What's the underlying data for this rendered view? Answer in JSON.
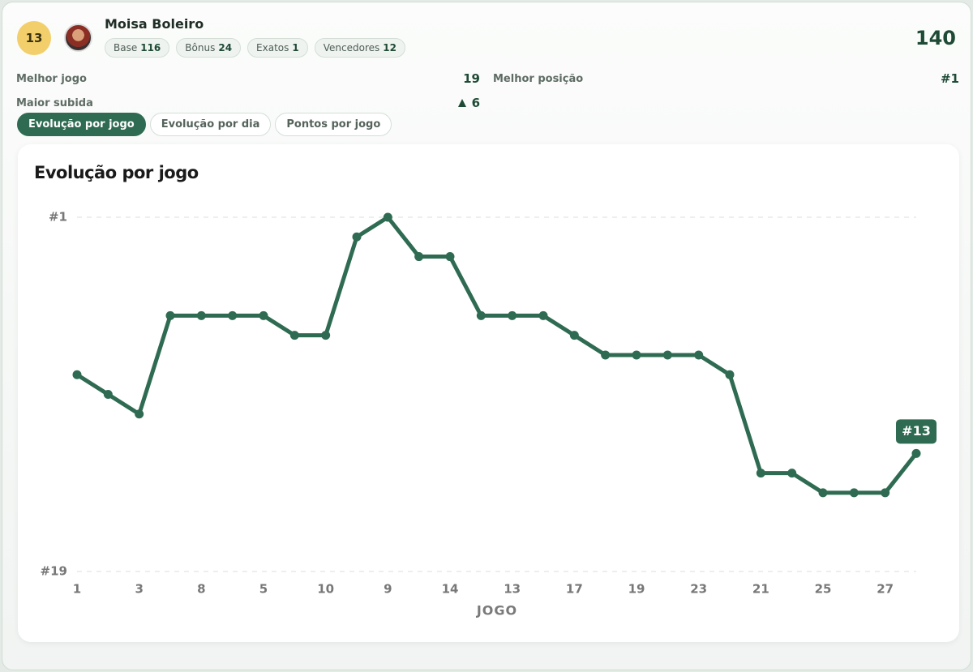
{
  "header": {
    "rank_badge": "13",
    "name": "Moisa Boleiro",
    "total": "140",
    "chips": [
      {
        "label": "Base",
        "value": "116"
      },
      {
        "label": "Bônus",
        "value": "24"
      },
      {
        "label": "Exatos",
        "value": "1"
      },
      {
        "label": "Vencedores",
        "value": "12"
      }
    ]
  },
  "stats": [
    {
      "label": "Melhor jogo",
      "value": "19"
    },
    {
      "label": "Melhor posição",
      "value": "#1"
    },
    {
      "label": "Maior subida",
      "value": "6"
    }
  ],
  "tabs": [
    "Evolução por jogo",
    "Evolução por dia",
    "Pontos por jogo"
  ],
  "chart_data": {
    "type": "line",
    "title": "Evolução por jogo",
    "xlabel": "JOGO",
    "categories": [
      "1",
      null,
      "3",
      null,
      "8",
      null,
      "5",
      null,
      "10",
      null,
      "9",
      null,
      "14",
      null,
      "13",
      null,
      "17",
      null,
      "19",
      null,
      "23",
      null,
      "21",
      null,
      "25",
      null,
      "27",
      null
    ],
    "series": [
      {
        "name": "Moisa Boleiro",
        "color": "#2f6b52",
        "values": [
          9,
          10,
          11,
          6,
          6,
          6,
          6,
          7,
          7,
          2,
          1,
          3,
          3,
          6,
          6,
          6,
          7,
          8,
          8,
          8,
          8,
          9,
          14,
          14,
          15,
          15,
          15,
          13
        ],
        "value_labels": [
          null,
          null,
          null,
          null,
          null,
          null,
          null,
          null,
          null,
          null,
          null,
          null,
          null,
          null,
          null,
          null,
          null,
          null,
          null,
          null,
          null,
          null,
          null,
          null,
          null,
          null,
          null,
          "#13"
        ]
      }
    ],
    "ylim": [
      19,
      1
    ],
    "yticks": [
      {
        "value": 1,
        "label": "#1"
      },
      {
        "value": 19,
        "label": "#19"
      }
    ],
    "grid": true
  }
}
